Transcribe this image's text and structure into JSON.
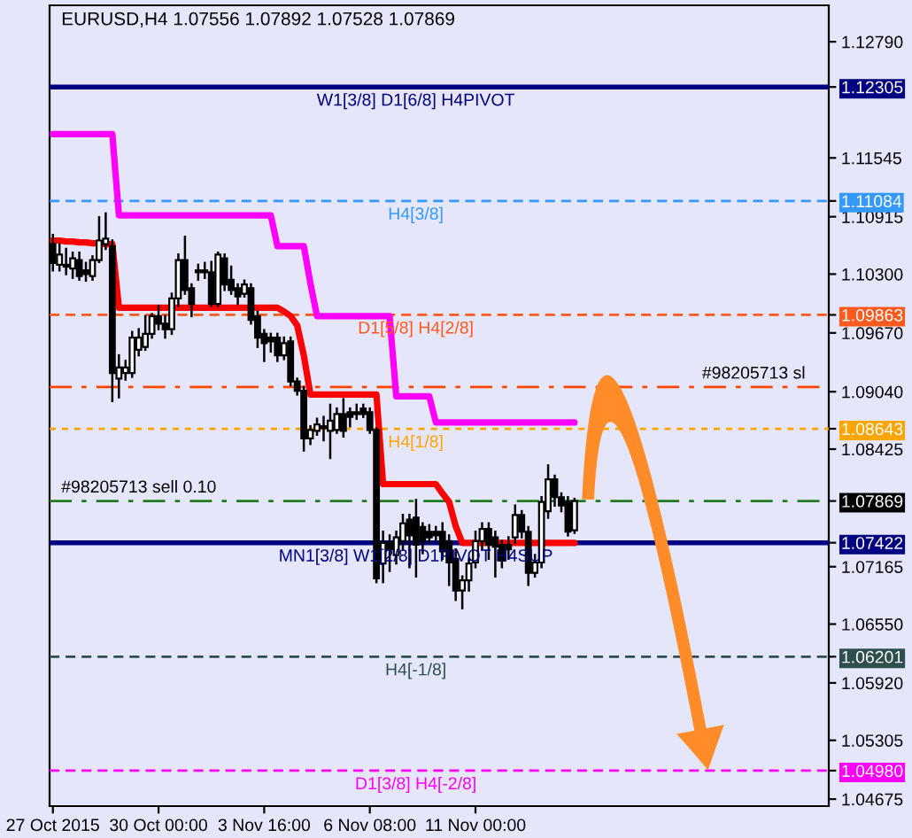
{
  "chart_data": {
    "type": "candlestick",
    "title": "EURUSD,H4 1.07556 1.07892 1.07528 1.07869",
    "categories": [
      "27 Oct 2015",
      null,
      null,
      null,
      null,
      null,
      null,
      null,
      null,
      null,
      null,
      null,
      null,
      null,
      null,
      null,
      "30 Oct 00:00",
      null,
      null,
      null,
      null,
      null,
      null,
      null,
      null,
      null,
      null,
      null,
      null,
      null,
      null,
      null,
      "3 Nov 16:00",
      null,
      null,
      null,
      null,
      null,
      null,
      null,
      null,
      null,
      null,
      null,
      null,
      null,
      null,
      null,
      "6 Nov 08:00",
      null,
      null,
      null,
      null,
      null,
      null,
      null,
      null,
      null,
      null,
      null,
      null,
      null,
      null,
      null,
      "11 Nov 00:00",
      null,
      null,
      null,
      null,
      null,
      null,
      null,
      null,
      null,
      null,
      null,
      null,
      null,
      null,
      null
    ],
    "ohlc": [
      [
        1.1062,
        1.1072,
        1.1034,
        1.1042
      ],
      [
        1.104,
        1.1062,
        1.1034,
        1.1051
      ],
      [
        1.1038,
        1.1057,
        1.103,
        1.104
      ],
      [
        1.1036,
        1.1053,
        1.1026,
        1.1047
      ],
      [
        1.1045,
        1.1053,
        1.1024,
        1.1028
      ],
      [
        1.1034,
        1.1042,
        1.1023,
        1.103
      ],
      [
        1.1028,
        1.1049,
        1.1024,
        1.1045
      ],
      [
        1.1045,
        1.1091,
        1.1043,
        1.1066
      ],
      [
        1.1062,
        1.1095,
        1.1057,
        1.1068
      ],
      [
        1.106,
        1.1066,
        1.0894,
        1.0924
      ],
      [
        1.0918,
        1.0943,
        1.0898,
        1.093
      ],
      [
        1.0924,
        1.0937,
        1.0917,
        1.093
      ],
      [
        1.0924,
        1.0968,
        1.092,
        1.0962
      ],
      [
        1.0949,
        1.0971,
        1.0943,
        1.0962
      ],
      [
        1.0952,
        1.0985,
        1.0949,
        1.0966
      ],
      [
        1.0966,
        1.0987,
        1.0962,
        1.0985
      ],
      [
        1.0985,
        1.0996,
        1.0971,
        1.0977
      ],
      [
        1.0977,
        1.0985,
        1.0962,
        1.0971
      ],
      [
        1.0971,
        1.1009,
        1.0966,
        1.1004
      ],
      [
        1.1004,
        1.1051,
        1.0996,
        1.1045
      ],
      [
        1.1045,
        1.107,
        1.1009,
        1.1013
      ],
      [
        1.1015,
        1.1019,
        1.0985,
        1.0998
      ],
      [
        1.1032,
        1.104,
        1.1024,
        1.1034
      ],
      [
        1.1032,
        1.1042,
        1.1026,
        1.1034
      ],
      [
        1.1032,
        1.1043,
        1.0996,
        1.0998
      ],
      [
        1.0998,
        1.1053,
        1.0996,
        1.1051
      ],
      [
        1.1047,
        1.1051,
        1.1013,
        1.1019
      ],
      [
        1.1024,
        1.1038,
        1.1009,
        1.1013
      ],
      [
        1.1015,
        1.1019,
        1.0998,
        1.1006
      ],
      [
        1.1009,
        1.1023,
        1.1006,
        1.1019
      ],
      [
        1.1015,
        1.1019,
        1.0977,
        1.0981
      ],
      [
        1.0985,
        1.099,
        1.0952,
        1.0962
      ],
      [
        1.0966,
        1.097,
        1.0937,
        1.0956
      ],
      [
        1.0962,
        1.0966,
        1.0947,
        1.0958
      ],
      [
        1.0962,
        1.0966,
        1.0937,
        1.0943
      ],
      [
        1.0943,
        1.0962,
        1.0939,
        1.0956
      ],
      [
        1.0958,
        1.0962,
        1.0911,
        1.0915
      ],
      [
        1.0915,
        1.0918,
        1.0901,
        1.0905
      ],
      [
        1.0905,
        1.0909,
        1.0841,
        1.0854
      ],
      [
        1.0854,
        1.0867,
        1.0848,
        1.0863
      ],
      [
        1.0862,
        1.0875,
        1.0858,
        1.0869
      ],
      [
        1.0865,
        1.0877,
        1.0852,
        1.0867
      ],
      [
        1.0862,
        1.089,
        1.0833,
        1.0873
      ],
      [
        1.0863,
        1.0886,
        1.086,
        1.088
      ],
      [
        1.088,
        1.0896,
        1.0856,
        1.0862
      ],
      [
        1.0882,
        1.0886,
        1.0867,
        1.0877
      ],
      [
        1.088,
        1.089,
        1.0875,
        1.0882
      ],
      [
        1.0886,
        1.089,
        1.0877,
        1.088
      ],
      [
        1.0882,
        1.0886,
        1.086,
        1.0863
      ],
      [
        1.0863,
        1.0865,
        1.07,
        1.0704
      ],
      [
        1.072,
        1.0754,
        1.07,
        1.0742
      ],
      [
        1.0742,
        1.075,
        1.0712,
        1.0735
      ],
      [
        1.0729,
        1.0754,
        1.072,
        1.0748
      ],
      [
        1.0744,
        1.0772,
        1.0735,
        1.0763
      ],
      [
        1.0767,
        1.0772,
        1.0716,
        1.075
      ],
      [
        1.0769,
        1.0788,
        1.0706,
        1.074
      ],
      [
        1.0759,
        1.0763,
        1.0731,
        1.0744
      ],
      [
        1.0754,
        1.0761,
        1.0742,
        1.0748
      ],
      [
        1.0754,
        1.0759,
        1.0744,
        1.075
      ],
      [
        1.0754,
        1.0763,
        1.0725,
        1.0733
      ],
      [
        1.0744,
        1.075,
        1.0697,
        1.0721
      ],
      [
        1.0725,
        1.0735,
        1.0681,
        1.0691
      ],
      [
        1.0691,
        1.0706,
        1.0672,
        1.0702
      ],
      [
        1.0702,
        1.0725,
        1.0691,
        1.072
      ],
      [
        1.0721,
        1.0754,
        1.0716,
        1.0744
      ],
      [
        1.0744,
        1.0763,
        1.0735,
        1.0757
      ],
      [
        1.0757,
        1.0763,
        1.0725,
        1.074
      ],
      [
        1.0748,
        1.0754,
        1.0706,
        1.0738
      ],
      [
        1.074,
        1.0744,
        1.0716,
        1.0723
      ],
      [
        1.074,
        1.0748,
        1.0725,
        1.0735
      ],
      [
        1.0748,
        1.0782,
        1.0742,
        1.0772
      ],
      [
        1.0772,
        1.0776,
        1.0748,
        1.0754
      ],
      [
        1.0754,
        1.0759,
        1.0697,
        1.071
      ],
      [
        1.071,
        1.0729,
        1.0706,
        1.0721
      ],
      [
        1.0721,
        1.0791,
        1.0716,
        1.0786
      ],
      [
        1.0776,
        1.0825,
        1.0769,
        1.081
      ],
      [
        1.081,
        1.0814,
        1.0782,
        1.0791
      ],
      [
        1.0791,
        1.0795,
        1.0776,
        1.0782
      ],
      [
        1.0786,
        1.0791,
        1.075,
        1.0754
      ],
      [
        1.07556,
        1.07892,
        1.07528,
        1.07869
      ]
    ],
    "series": [
      {
        "type": "line",
        "color": "#ff00ff",
        "values": [
          1.118,
          1.118,
          1.118,
          1.118,
          1.118,
          1.118,
          1.118,
          1.118,
          1.118,
          1.118,
          1.1093,
          1.1093,
          1.1093,
          1.1093,
          1.1093,
          1.1093,
          1.1093,
          1.1093,
          1.1093,
          1.1093,
          1.1093,
          1.1093,
          1.1093,
          1.1093,
          1.1093,
          1.1093,
          1.1093,
          1.1093,
          1.1093,
          1.1093,
          1.1093,
          1.1093,
          1.1093,
          1.1093,
          1.106,
          1.106,
          1.106,
          1.106,
          1.106,
          1.102,
          1.0985,
          1.0985,
          1.0985,
          1.0985,
          1.0985,
          1.0985,
          1.0985,
          1.0985,
          1.0985,
          1.0985,
          1.0985,
          1.0985,
          1.0899,
          1.0899,
          1.0899,
          1.0899,
          1.0899,
          1.0899,
          1.0871,
          1.0871,
          1.0871,
          1.0871,
          1.0871,
          1.0871,
          1.0871,
          1.0871,
          1.0871,
          1.0871,
          1.0871,
          1.0871,
          1.0871,
          1.0871,
          1.0871,
          1.0871,
          1.0871,
          1.0871,
          1.0871,
          1.0871,
          1.0871,
          1.0871
        ]
      },
      {
        "type": "line",
        "color": "#ff0000",
        "values": [
          1.1066,
          1.1066,
          1.1065,
          1.1065,
          1.1064,
          1.1064,
          1.1063,
          1.1063,
          1.1062,
          1.1062,
          1.0994,
          1.0994,
          1.0994,
          1.0994,
          1.0994,
          1.0994,
          1.0994,
          1.0994,
          1.0994,
          1.0994,
          1.0994,
          1.0994,
          1.0994,
          1.0994,
          1.0994,
          1.0994,
          1.0994,
          1.0994,
          1.0994,
          1.0994,
          1.0994,
          1.0994,
          1.0994,
          1.0994,
          1.0994,
          1.099,
          1.0985,
          1.0975,
          1.0943,
          1.0901,
          1.0901,
          1.0901,
          1.0901,
          1.0901,
          1.0901,
          1.0901,
          1.0901,
          1.0901,
          1.0901,
          1.0901,
          1.0805,
          1.0805,
          1.0805,
          1.0805,
          1.0805,
          1.0805,
          1.0805,
          1.0805,
          1.0805,
          1.0795,
          1.0786,
          1.076,
          1.0742,
          1.0742,
          1.0742,
          1.0742,
          1.0742,
          1.0742,
          1.0742,
          1.0742,
          1.0742,
          1.0742,
          1.0742,
          1.0742,
          1.0742,
          1.0742,
          1.0742,
          1.0742,
          1.0742,
          1.0742
        ]
      }
    ],
    "ylim": [
      1.046,
      1.1318
    ],
    "yticks": [
      {
        "value": 1.1279,
        "label": "1.12790"
      },
      {
        "value": 1.11545,
        "label": "1.11545"
      },
      {
        "value": 1.10915,
        "label": "1.10915"
      },
      {
        "value": 1.103,
        "label": "1.10300"
      },
      {
        "value": 1.0967,
        "label": "1.09670"
      },
      {
        "value": 1.0904,
        "label": "1.09040"
      },
      {
        "value": 1.08425,
        "label": "1.08425"
      },
      {
        "value": 1.07165,
        "label": "1.07165"
      },
      {
        "value": 1.0655,
        "label": "1.06550"
      },
      {
        "value": 1.0592,
        "label": "1.05920"
      },
      {
        "value": 1.05305,
        "label": "1.05305"
      },
      {
        "value": 1.04675,
        "label": "1.04675"
      },
      {
        "value": 1.12305,
        "label": "1.12305"
      },
      {
        "value": 1.11084,
        "label": "1.11084"
      },
      {
        "value": 1.09863,
        "label": "1.09863"
      },
      {
        "value": 1.08643,
        "label": "1.08643"
      },
      {
        "value": 1.07869,
        "label": "1.07869"
      },
      {
        "value": 1.07422,
        "label": "1.07422"
      },
      {
        "value": 1.06201,
        "label": "1.06201"
      },
      {
        "value": 1.0498,
        "label": "1.04980"
      }
    ],
    "ref_lines": [
      {
        "axis": "y",
        "value": 1.12305,
        "label": "W1[3/8] D1[6/8] H4PIVOT",
        "color": "#000080",
        "line_style": "solid"
      },
      {
        "axis": "y",
        "value": 1.11084,
        "label": "H4[3/8]",
        "color": "#3399ff",
        "line_style": "dashed"
      },
      {
        "axis": "y",
        "value": 1.09863,
        "label": "D1[5/8] H4[2/8]",
        "color": "#ff5a1e",
        "line_style": "dashed"
      },
      {
        "axis": "y",
        "value": 1.0909,
        "label": "#98205713 sl",
        "color": "#ff4500",
        "line_style": "dashdot"
      },
      {
        "axis": "y",
        "value": 1.08643,
        "label": "H4[1/8]",
        "color": "#ffa500",
        "line_style": "dotted"
      },
      {
        "axis": "y",
        "value": 1.07869,
        "label": "#98205713 sell 0.10",
        "color": "#1e7b1e",
        "line_style": "dashdot"
      },
      {
        "axis": "y",
        "value": 1.07422,
        "label": "MN1[3/8] W1[2/8] D1PIVOT H4SUP",
        "color": "#000080",
        "line_style": "solid"
      },
      {
        "axis": "y",
        "value": 1.06201,
        "label": "H4[-1/8]",
        "color": "#2f4f4f",
        "line_style": "dashed"
      },
      {
        "axis": "y",
        "value": 1.0498,
        "label": "D1[3/8] H4[-2/8]",
        "color": "#ff00ff",
        "line_style": "dashed"
      }
    ]
  }
}
